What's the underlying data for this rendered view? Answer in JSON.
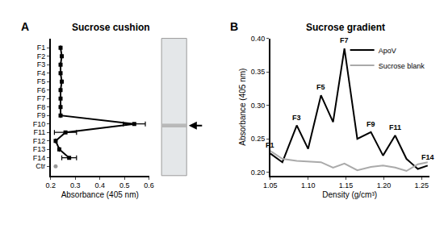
{
  "chart_data": [
    {
      "type": "line",
      "panel_label": "A",
      "title": "Sucrose cushion",
      "x_label": "Absorbance (405 nm)",
      "orientation": "horizontal",
      "categories": [
        "F1",
        "F2",
        "F3",
        "F4",
        "F5",
        "F6",
        "F7",
        "F8",
        "F9",
        "F10",
        "F11",
        "F12",
        "F13",
        "F14",
        "Ctr"
      ],
      "series": [
        {
          "color": "#000000",
          "marker": "square",
          "line_style": "solid",
          "values": [
            0.24,
            0.245,
            0.24,
            0.24,
            0.245,
            0.24,
            0.24,
            0.24,
            0.24,
            0.54,
            0.26,
            0.22,
            0.235,
            0.275,
            null
          ],
          "errors": [
            null,
            null,
            null,
            null,
            null,
            null,
            null,
            null,
            null,
            0.045,
            0.045,
            null,
            null,
            0.03,
            null
          ]
        },
        {
          "color": "#999999",
          "marker": "circle",
          "line_style": "solid",
          "values": [
            null,
            null,
            null,
            null,
            null,
            null,
            null,
            null,
            null,
            null,
            null,
            null,
            null,
            null,
            0.22
          ]
        }
      ],
      "xlim": [
        0.2,
        0.6
      ],
      "xticks": [
        0.2,
        0.3,
        0.4,
        0.5,
        0.6
      ],
      "grid": false
    },
    {
      "type": "line",
      "panel_label": "B",
      "title": "Sucrose gradient",
      "x_label": "Density (g/cm³)",
      "y_label": "Absorbance (405 nm)",
      "x": [
        1.05,
        1.066,
        1.085,
        1.1,
        1.117,
        1.133,
        1.148,
        1.165,
        1.183,
        1.199,
        1.215,
        1.23,
        1.245,
        1.258
      ],
      "series": [
        {
          "name": "ApoV",
          "color": "#000000",
          "line_style": "solid",
          "values": [
            0.228,
            0.215,
            0.27,
            0.235,
            0.315,
            0.275,
            0.385,
            0.25,
            0.26,
            0.225,
            0.255,
            0.22,
            0.205,
            0.21
          ]
        },
        {
          "name": "Sucrose blank",
          "color": "#aaaaaa",
          "line_style": "solid",
          "values": [
            0.232,
            0.22,
            0.217,
            0.216,
            0.215,
            0.207,
            0.213,
            0.203,
            0.208,
            0.21,
            0.207,
            0.202,
            0.212,
            0.215
          ]
        }
      ],
      "annotations": [
        {
          "text": "F1",
          "x": 1.05
        },
        {
          "text": "F3",
          "x": 1.085
        },
        {
          "text": "F5",
          "x": 1.117
        },
        {
          "text": "F7",
          "x": 1.148
        },
        {
          "text": "F9",
          "x": 1.183
        },
        {
          "text": "F11",
          "x": 1.215
        },
        {
          "text": "F14",
          "x": 1.258
        }
      ],
      "xlim": [
        1.05,
        1.26
      ],
      "xticks": [
        1.05,
        {
          "value": 1.1,
          "label": "1.10"
        },
        1.15,
        {
          "value": 1.2,
          "label": "1.20"
        },
        1.25
      ],
      "ylim": [
        0.195,
        0.4
      ],
      "yticks": [
        {
          "value": 0.2,
          "label": "0.20"
        },
        0.25,
        {
          "value": 0.3,
          "label": "0.30"
        },
        0.35,
        {
          "value": 0.4,
          "label": "0.40"
        }
      ],
      "legend": "top right",
      "grid": false
    }
  ]
}
